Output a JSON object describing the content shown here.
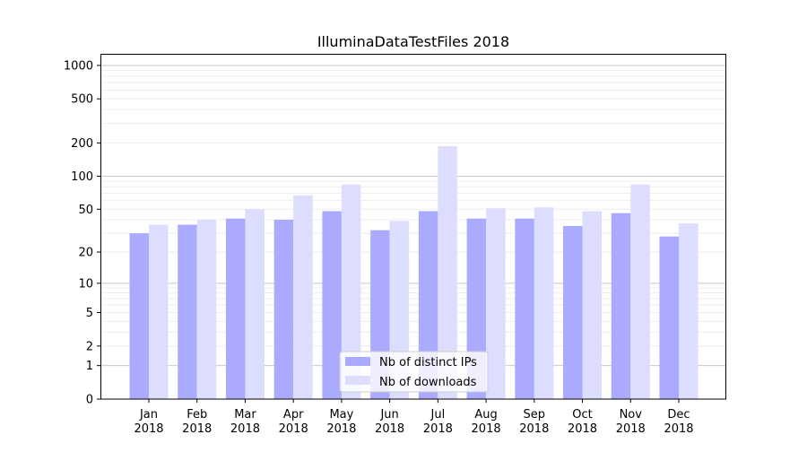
{
  "chart_data": {
    "type": "bar",
    "title": "IlluminaDataTestFiles 2018",
    "xlabel": "",
    "ylabel": "",
    "yscale": "symlog",
    "ylim": [
      0,
      1300
    ],
    "yticks": [
      0,
      1,
      2,
      5,
      10,
      20,
      50,
      100,
      200,
      500,
      1000
    ],
    "grid": true,
    "legend_position": "bottom-center",
    "categories": [
      "Jan\n2018",
      "Feb\n2018",
      "Mar\n2018",
      "Apr\n2018",
      "May\n2018",
      "Jun\n2018",
      "Jul\n2018",
      "Aug\n2018",
      "Sep\n2018",
      "Oct\n2018",
      "Nov\n2018",
      "Dec\n2018"
    ],
    "series": [
      {
        "name": "Nb of distinct IPs",
        "color": "#aaaaff",
        "values": [
          30,
          36,
          41,
          40,
          48,
          32,
          48,
          41,
          41,
          35,
          46,
          28
        ]
      },
      {
        "name": "Nb of downloads",
        "color": "#ddddff",
        "values": [
          36,
          40,
          50,
          67,
          84,
          39,
          187,
          51,
          52,
          48,
          84,
          37
        ]
      }
    ]
  }
}
